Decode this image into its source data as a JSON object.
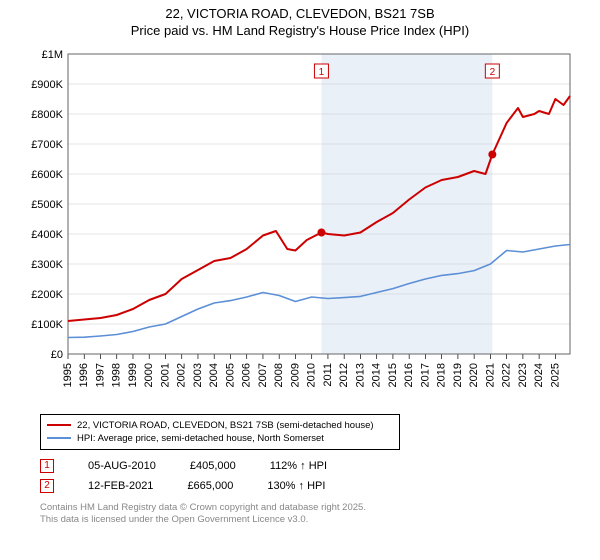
{
  "title": {
    "line1": "22, VICTORIA ROAD, CLEVEDON, BS21 7SB",
    "line2": "Price paid vs. HM Land Registry's House Price Index (HPI)"
  },
  "chart": {
    "type": "line",
    "background_color": "#ffffff",
    "plot_border_color": "#666666",
    "xlim": [
      1995,
      2025.9
    ],
    "ylim": [
      0,
      1000000
    ],
    "ytick_labels": [
      "£0",
      "£100K",
      "£200K",
      "£300K",
      "£400K",
      "£500K",
      "£600K",
      "£700K",
      "£800K",
      "£900K",
      "£1M"
    ],
    "ytick_values": [
      0,
      100000,
      200000,
      300000,
      400000,
      500000,
      600000,
      700000,
      800000,
      900000,
      1000000
    ],
    "xtick_values": [
      1995,
      1996,
      1997,
      1998,
      1999,
      2000,
      2001,
      2002,
      2003,
      2004,
      2005,
      2006,
      2007,
      2008,
      2009,
      2010,
      2011,
      2012,
      2013,
      2014,
      2015,
      2016,
      2017,
      2018,
      2019,
      2020,
      2021,
      2022,
      2023,
      2024,
      2025
    ],
    "grid_color": "#cccccc",
    "shade_band": {
      "xstart": 2010.6,
      "xend": 2021.12,
      "fill": "#eaf0f8"
    },
    "series": [
      {
        "name": "price_paid",
        "color": "#cc0000",
        "width": 2,
        "data": [
          [
            1995,
            110000
          ],
          [
            1996,
            115000
          ],
          [
            1997,
            120000
          ],
          [
            1998,
            130000
          ],
          [
            1999,
            150000
          ],
          [
            2000,
            180000
          ],
          [
            2001,
            200000
          ],
          [
            2002,
            250000
          ],
          [
            2003,
            280000
          ],
          [
            2004,
            310000
          ],
          [
            2005,
            320000
          ],
          [
            2006,
            350000
          ],
          [
            2007,
            395000
          ],
          [
            2007.8,
            410000
          ],
          [
            2008.5,
            350000
          ],
          [
            2009,
            345000
          ],
          [
            2009.7,
            380000
          ],
          [
            2010.6,
            405000
          ],
          [
            2011,
            400000
          ],
          [
            2012,
            395000
          ],
          [
            2013,
            405000
          ],
          [
            2014,
            440000
          ],
          [
            2015,
            470000
          ],
          [
            2016,
            515000
          ],
          [
            2017,
            555000
          ],
          [
            2018,
            580000
          ],
          [
            2019,
            590000
          ],
          [
            2020,
            610000
          ],
          [
            2020.7,
            600000
          ],
          [
            2021.12,
            665000
          ],
          [
            2022,
            770000
          ],
          [
            2022.7,
            820000
          ],
          [
            2023,
            790000
          ],
          [
            2023.7,
            800000
          ],
          [
            2024,
            810000
          ],
          [
            2024.6,
            800000
          ],
          [
            2025,
            850000
          ],
          [
            2025.5,
            830000
          ],
          [
            2025.9,
            860000
          ]
        ]
      },
      {
        "name": "hpi",
        "color": "#5b8fd6",
        "width": 1.6,
        "data": [
          [
            1995,
            55000
          ],
          [
            1996,
            56000
          ],
          [
            1997,
            60000
          ],
          [
            1998,
            65000
          ],
          [
            1999,
            75000
          ],
          [
            2000,
            90000
          ],
          [
            2001,
            100000
          ],
          [
            2002,
            125000
          ],
          [
            2003,
            150000
          ],
          [
            2004,
            170000
          ],
          [
            2005,
            178000
          ],
          [
            2006,
            190000
          ],
          [
            2007,
            205000
          ],
          [
            2008,
            195000
          ],
          [
            2009,
            175000
          ],
          [
            2010,
            190000
          ],
          [
            2011,
            185000
          ],
          [
            2012,
            188000
          ],
          [
            2013,
            192000
          ],
          [
            2014,
            205000
          ],
          [
            2015,
            218000
          ],
          [
            2016,
            235000
          ],
          [
            2017,
            250000
          ],
          [
            2018,
            262000
          ],
          [
            2019,
            268000
          ],
          [
            2020,
            278000
          ],
          [
            2021,
            300000
          ],
          [
            2022,
            345000
          ],
          [
            2023,
            340000
          ],
          [
            2024,
            350000
          ],
          [
            2025,
            360000
          ],
          [
            2025.9,
            365000
          ]
        ]
      }
    ],
    "markers": [
      {
        "num": "1",
        "x": 2010.6,
        "y": 405000,
        "color": "#cc0000"
      },
      {
        "num": "2",
        "x": 2021.12,
        "y": 665000,
        "color": "#cc0000"
      }
    ]
  },
  "legend": {
    "items": [
      {
        "color": "#cc0000",
        "label": "22, VICTORIA ROAD, CLEVEDON, BS21 7SB (semi-detached house)"
      },
      {
        "color": "#5b8fd6",
        "label": "HPI: Average price, semi-detached house, North Somerset"
      }
    ]
  },
  "marker_rows": [
    {
      "num": "1",
      "date": "05-AUG-2010",
      "price": "£405,000",
      "pct": "112% ↑ HPI"
    },
    {
      "num": "2",
      "date": "12-FEB-2021",
      "price": "£665,000",
      "pct": "130% ↑ HPI"
    }
  ],
  "footer": {
    "line1": "Contains HM Land Registry data © Crown copyright and database right 2025.",
    "line2": "This data is licensed under the Open Government Licence v3.0."
  }
}
